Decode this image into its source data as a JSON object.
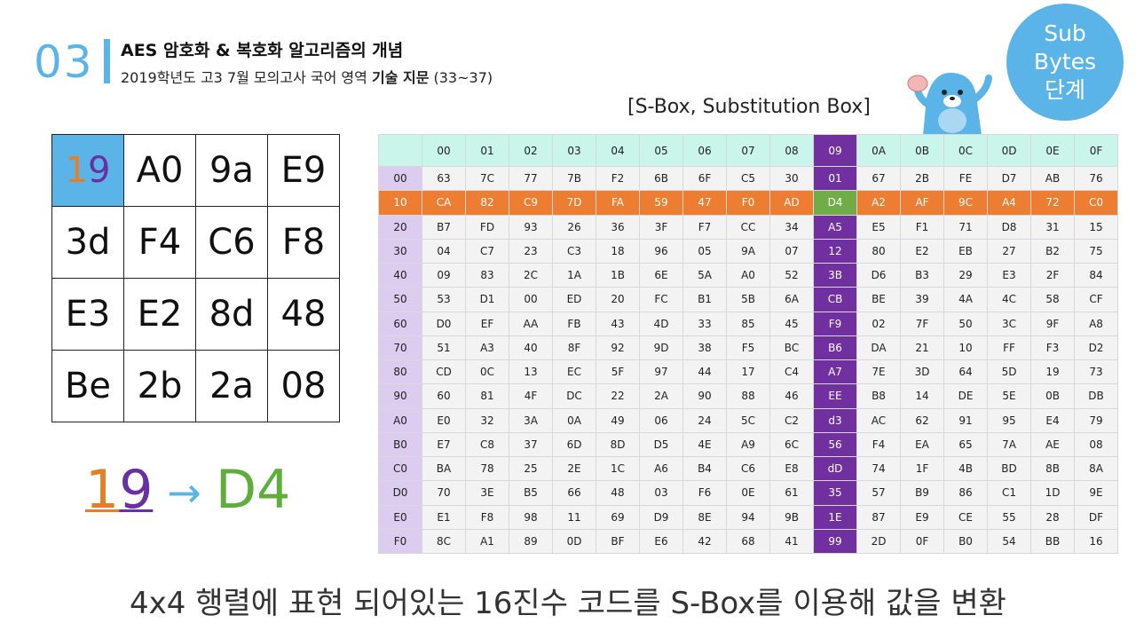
{
  "header": {
    "number": "03",
    "title": "AES 암호화 & 복호화 알고리즘의 개념",
    "subtitle_prefix": "2019학년도 고3 7월 모의고사 국어 영역 ",
    "subtitle_bold": "기술 지문",
    "subtitle_suffix": " (33~37)"
  },
  "badge": {
    "line1": "Sub",
    "line2": "Bytes",
    "line3": "단계"
  },
  "sbox_title": "[S-Box, Substitution Box]",
  "state_matrix": [
    [
      "19",
      "A0",
      "9a",
      "E9"
    ],
    [
      "3d",
      "F4",
      "C6",
      "F8"
    ],
    [
      "E3",
      "E2",
      "8d",
      "48"
    ],
    [
      "Be",
      "2b",
      "2a",
      "08"
    ]
  ],
  "result": {
    "in_hi": "1",
    "in_lo": "9",
    "arrow": "→",
    "out": "D4"
  },
  "sbox": {
    "columns": [
      "00",
      "01",
      "02",
      "03",
      "04",
      "05",
      "06",
      "07",
      "08",
      "09",
      "0A",
      "0B",
      "0C",
      "0D",
      "0E",
      "0F"
    ],
    "rows": [
      {
        "label": "00",
        "values": [
          "63",
          "7C",
          "77",
          "7B",
          "F2",
          "6B",
          "6F",
          "C5",
          "30",
          "01",
          "67",
          "2B",
          "FE",
          "D7",
          "AB",
          "76"
        ]
      },
      {
        "label": "10",
        "values": [
          "CA",
          "82",
          "C9",
          "7D",
          "FA",
          "59",
          "47",
          "F0",
          "AD",
          "D4",
          "A2",
          "AF",
          "9C",
          "A4",
          "72",
          "C0"
        ]
      },
      {
        "label": "20",
        "values": [
          "B7",
          "FD",
          "93",
          "26",
          "36",
          "3F",
          "F7",
          "CC",
          "34",
          "A5",
          "E5",
          "F1",
          "71",
          "D8",
          "31",
          "15"
        ]
      },
      {
        "label": "30",
        "values": [
          "04",
          "C7",
          "23",
          "C3",
          "18",
          "96",
          "05",
          "9A",
          "07",
          "12",
          "80",
          "E2",
          "EB",
          "27",
          "B2",
          "75"
        ]
      },
      {
        "label": "40",
        "values": [
          "09",
          "83",
          "2C",
          "1A",
          "1B",
          "6E",
          "5A",
          "A0",
          "52",
          "3B",
          "D6",
          "B3",
          "29",
          "E3",
          "2F",
          "84"
        ]
      },
      {
        "label": "50",
        "values": [
          "53",
          "D1",
          "00",
          "ED",
          "20",
          "FC",
          "B1",
          "5B",
          "6A",
          "CB",
          "BE",
          "39",
          "4A",
          "4C",
          "58",
          "CF"
        ]
      },
      {
        "label": "60",
        "values": [
          "D0",
          "EF",
          "AA",
          "FB",
          "43",
          "4D",
          "33",
          "85",
          "45",
          "F9",
          "02",
          "7F",
          "50",
          "3C",
          "9F",
          "A8"
        ]
      },
      {
        "label": "70",
        "values": [
          "51",
          "A3",
          "40",
          "8F",
          "92",
          "9D",
          "38",
          "F5",
          "BC",
          "B6",
          "DA",
          "21",
          "10",
          "FF",
          "F3",
          "D2"
        ]
      },
      {
        "label": "80",
        "values": [
          "CD",
          "0C",
          "13",
          "EC",
          "5F",
          "97",
          "44",
          "17",
          "C4",
          "A7",
          "7E",
          "3D",
          "64",
          "5D",
          "19",
          "73"
        ]
      },
      {
        "label": "90",
        "values": [
          "60",
          "81",
          "4F",
          "DC",
          "22",
          "2A",
          "90",
          "88",
          "46",
          "EE",
          "B8",
          "14",
          "DE",
          "5E",
          "0B",
          "DB"
        ]
      },
      {
        "label": "A0",
        "values": [
          "E0",
          "32",
          "3A",
          "0A",
          "49",
          "06",
          "24",
          "5C",
          "C2",
          "d3",
          "AC",
          "62",
          "91",
          "95",
          "E4",
          "79"
        ]
      },
      {
        "label": "B0",
        "values": [
          "E7",
          "C8",
          "37",
          "6D",
          "8D",
          "D5",
          "4E",
          "A9",
          "6C",
          "56",
          "F4",
          "EA",
          "65",
          "7A",
          "AE",
          "08"
        ]
      },
      {
        "label": "C0",
        "values": [
          "BA",
          "78",
          "25",
          "2E",
          "1C",
          "A6",
          "B4",
          "C6",
          "E8",
          "dD",
          "74",
          "1F",
          "4B",
          "BD",
          "8B",
          "8A"
        ]
      },
      {
        "label": "D0",
        "values": [
          "70",
          "3E",
          "B5",
          "66",
          "48",
          "03",
          "F6",
          "0E",
          "61",
          "35",
          "57",
          "B9",
          "86",
          "C1",
          "1D",
          "9E"
        ]
      },
      {
        "label": "E0",
        "values": [
          "E1",
          "F8",
          "98",
          "11",
          "69",
          "D9",
          "8E",
          "94",
          "9B",
          "1E",
          "87",
          "E9",
          "CE",
          "55",
          "28",
          "DF"
        ]
      },
      {
        "label": "F0",
        "values": [
          "8C",
          "A1",
          "89",
          "0D",
          "BF",
          "E6",
          "42",
          "68",
          "41",
          "99",
          "2D",
          "0F",
          "B0",
          "54",
          "BB",
          "16"
        ]
      }
    ],
    "highlight_row": "10",
    "highlight_col": "09"
  },
  "caption": "4x4 행렬에 표현 되어있는 16진수 코드를 S-Box를 이용해 값을 변환",
  "colors": {
    "accent": "#5bb4e8",
    "purple": "#7030a0",
    "orange": "#ed7d31",
    "green": "#70ad47"
  }
}
